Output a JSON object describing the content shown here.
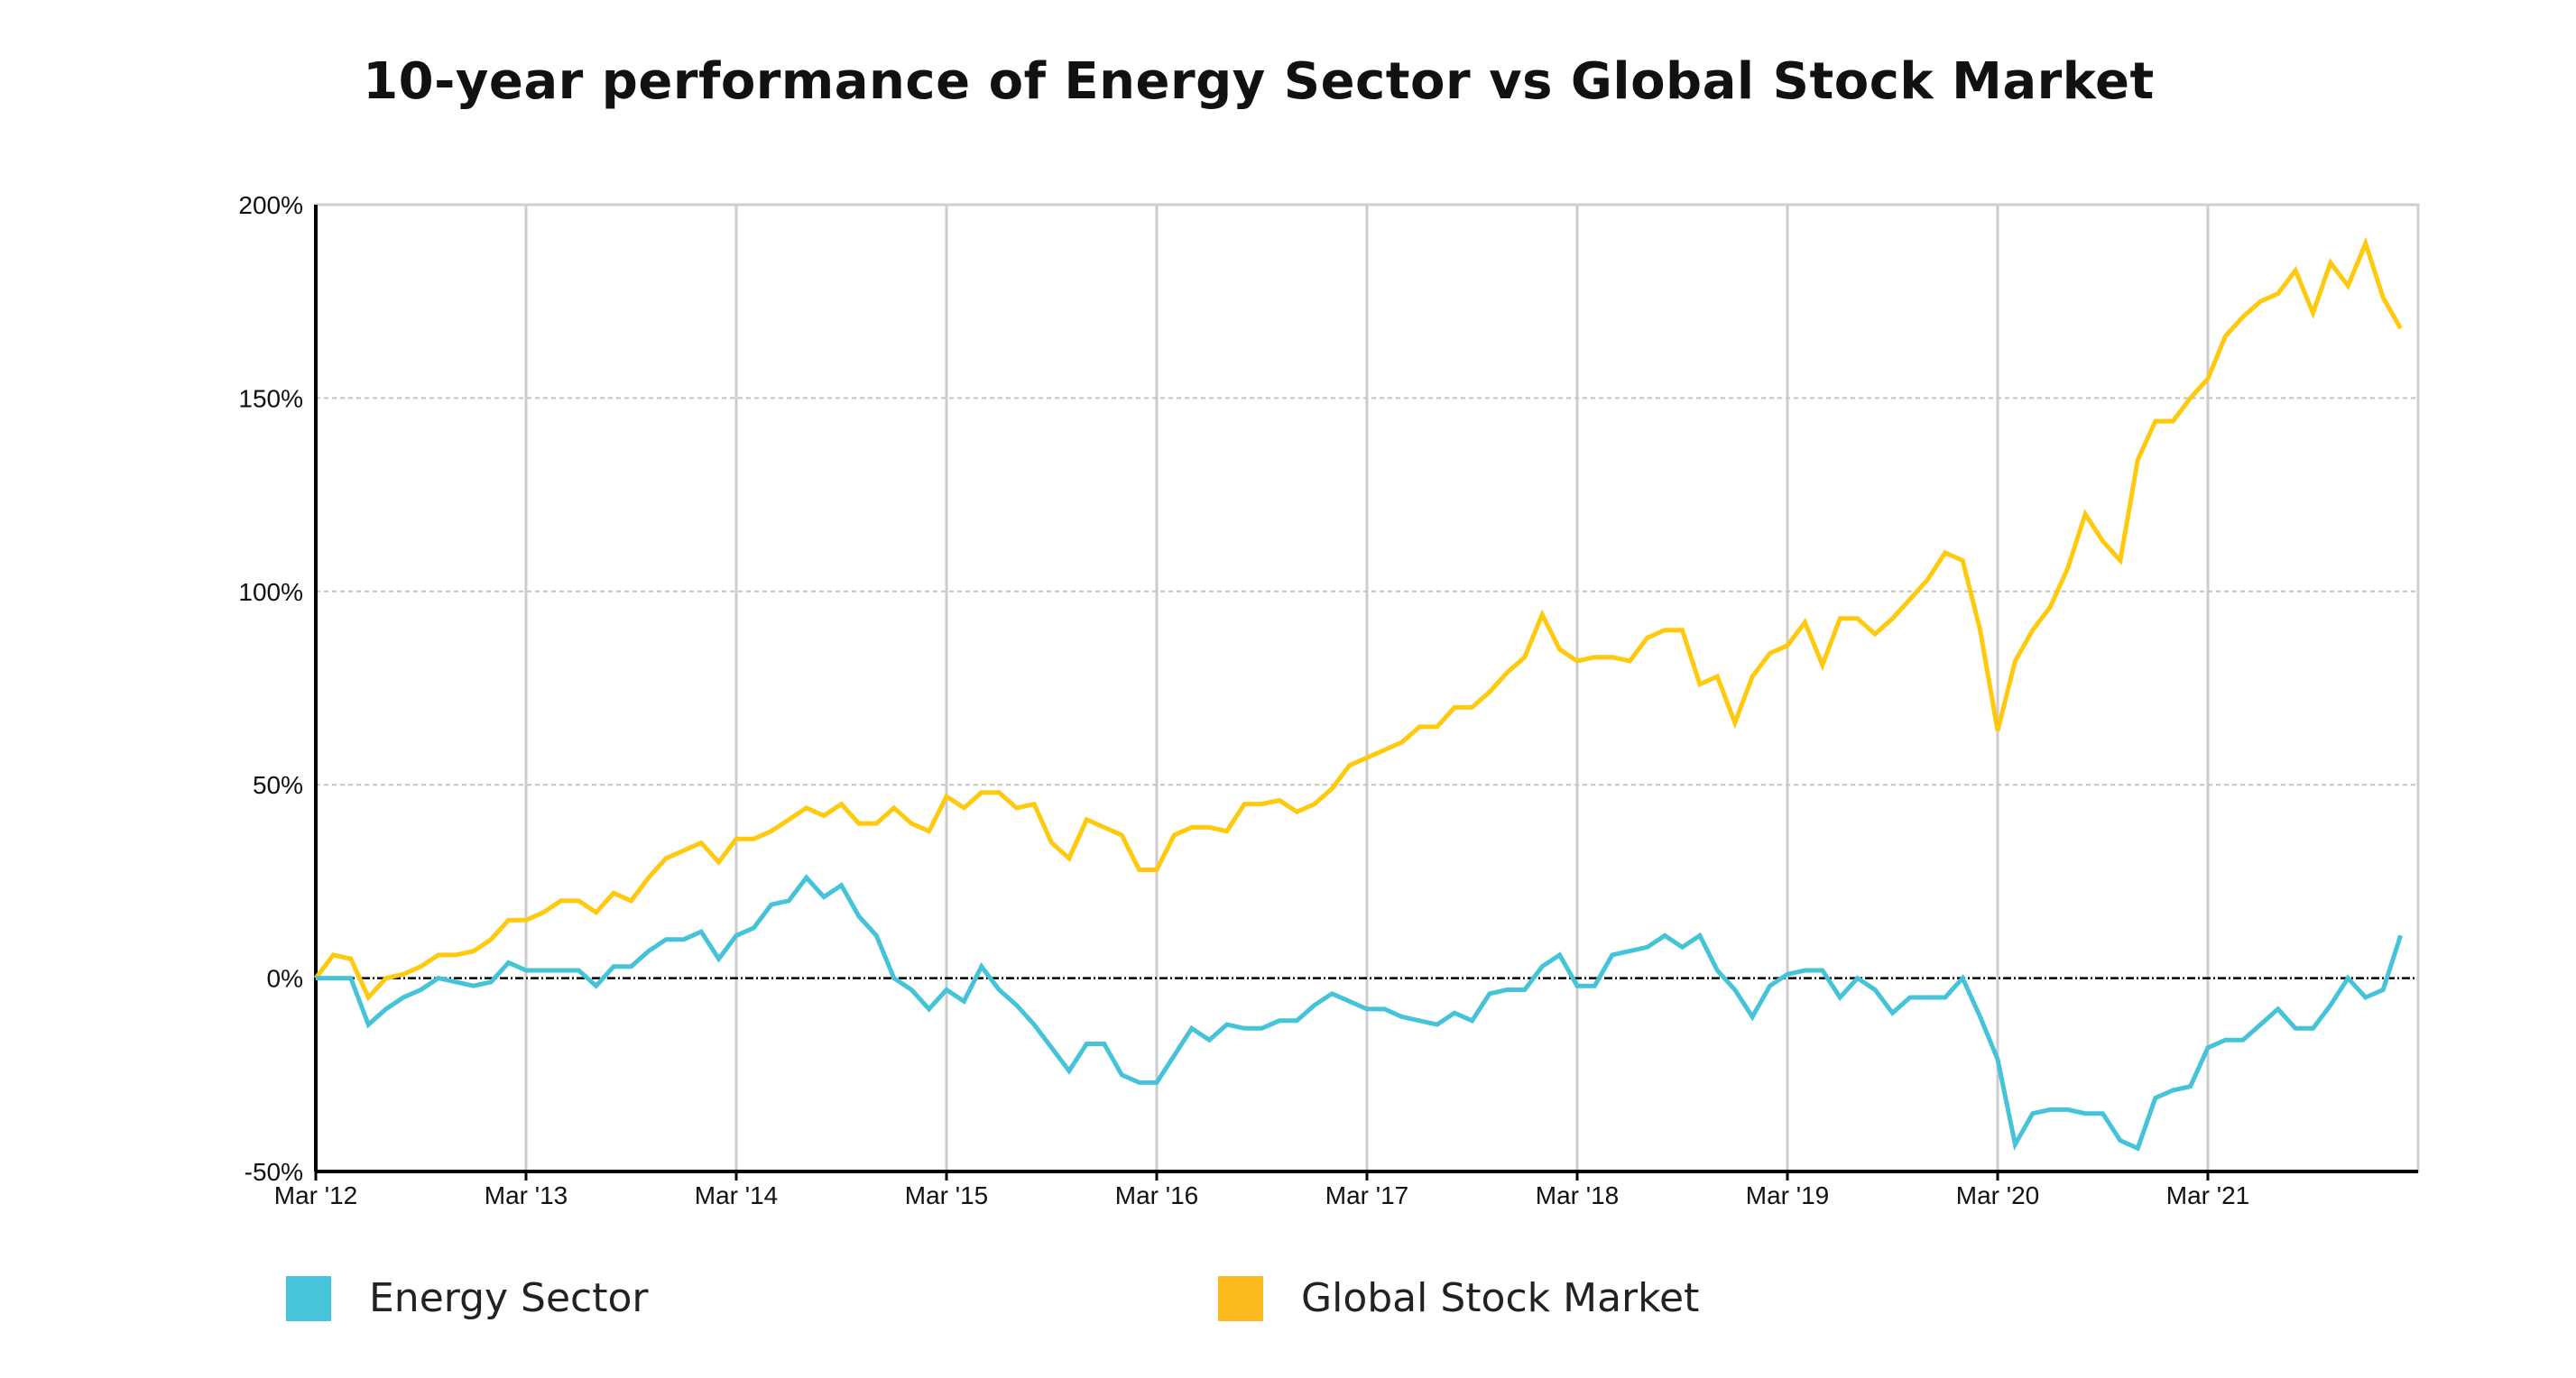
{
  "chart_data": {
    "type": "line",
    "title": "10-year performance of Energy Sector vs Global Stock Market",
    "xlabel": "",
    "ylabel": "",
    "ylim": [
      -50,
      200
    ],
    "yticks": [
      -50,
      0,
      50,
      100,
      150,
      200
    ],
    "ytick_labels": [
      "-50%",
      "0%",
      "50%",
      "100%",
      "150%",
      "200%"
    ],
    "xlim": [
      "2012-03",
      "2022-03"
    ],
    "xticks": [
      "2012-03",
      "2013-03",
      "2014-03",
      "2015-03",
      "2016-03",
      "2017-03",
      "2018-03",
      "2019-03",
      "2020-03",
      "2021-03"
    ],
    "xtick_labels": [
      "Mar '12",
      "Mar '13",
      "Mar '14",
      "Mar '15",
      "Mar '16",
      "Mar '17",
      "Mar '18",
      "Mar '19",
      "Mar '20",
      "Mar '21"
    ],
    "grid": {
      "vertical": true,
      "horizontal": true
    },
    "legend_position": "bottom",
    "x": [
      "2012-03",
      "2012-04",
      "2012-05",
      "2012-06",
      "2012-07",
      "2012-08",
      "2012-09",
      "2012-10",
      "2012-11",
      "2012-12",
      "2013-01",
      "2013-02",
      "2013-03",
      "2013-04",
      "2013-05",
      "2013-06",
      "2013-07",
      "2013-08",
      "2013-09",
      "2013-10",
      "2013-11",
      "2013-12",
      "2014-01",
      "2014-02",
      "2014-03",
      "2014-04",
      "2014-05",
      "2014-06",
      "2014-07",
      "2014-08",
      "2014-09",
      "2014-10",
      "2014-11",
      "2014-12",
      "2015-01",
      "2015-02",
      "2015-03",
      "2015-04",
      "2015-05",
      "2015-06",
      "2015-07",
      "2015-08",
      "2015-09",
      "2015-10",
      "2015-11",
      "2015-12",
      "2016-01",
      "2016-02",
      "2016-03",
      "2016-04",
      "2016-05",
      "2016-06",
      "2016-07",
      "2016-08",
      "2016-09",
      "2016-10",
      "2016-11",
      "2016-12",
      "2017-01",
      "2017-02",
      "2017-03",
      "2017-04",
      "2017-05",
      "2017-06",
      "2017-07",
      "2017-08",
      "2017-09",
      "2017-10",
      "2017-11",
      "2017-12",
      "2018-01",
      "2018-02",
      "2018-03",
      "2018-04",
      "2018-05",
      "2018-06",
      "2018-07",
      "2018-08",
      "2018-09",
      "2018-10",
      "2018-11",
      "2018-12",
      "2019-01",
      "2019-02",
      "2019-03",
      "2019-04",
      "2019-05",
      "2019-06",
      "2019-07",
      "2019-08",
      "2019-09",
      "2019-10",
      "2019-11",
      "2019-12",
      "2020-01",
      "2020-02",
      "2020-03",
      "2020-04",
      "2020-05",
      "2020-06",
      "2020-07",
      "2020-08",
      "2020-09",
      "2020-10",
      "2020-11",
      "2020-12",
      "2021-01",
      "2021-02",
      "2021-03",
      "2021-04",
      "2021-05",
      "2021-06",
      "2021-07",
      "2021-08",
      "2021-09",
      "2021-10",
      "2021-11",
      "2021-12",
      "2022-01",
      "2022-02"
    ],
    "series": [
      {
        "name": "Energy Sector",
        "color": "#45C3D8",
        "values": [
          0,
          0,
          0,
          -12,
          -8,
          -5,
          -3,
          0,
          -1,
          -2,
          -1,
          4,
          2,
          2,
          2,
          2,
          -2,
          3,
          3,
          7,
          10,
          10,
          12,
          5,
          11,
          13,
          19,
          20,
          26,
          21,
          24,
          16,
          11,
          0,
          -3,
          -8,
          -3,
          -6,
          3,
          -3,
          -7,
          -12,
          -18,
          -24,
          -17,
          -17,
          -25,
          -27,
          -27,
          -20,
          -13,
          -16,
          -12,
          -13,
          -13,
          -11,
          -11,
          -7,
          -4,
          -6,
          -8,
          -8,
          -10,
          -11,
          -12,
          -9,
          -11,
          -4,
          -3,
          -3,
          3,
          6,
          -2,
          -2,
          6,
          7,
          8,
          11,
          8,
          11,
          2,
          -3,
          -10,
          -2,
          1,
          2,
          2,
          -5,
          0,
          -3,
          -9,
          -5,
          -5,
          -5,
          0,
          -10,
          -21,
          -43,
          -35,
          -34,
          -34,
          -35,
          -35,
          -42,
          -44,
          -31,
          -29,
          -28,
          -18,
          -16,
          -16,
          -12,
          -8,
          -13,
          -13,
          -7,
          0,
          -5,
          -3,
          11
        ]
      },
      {
        "name": "Global Stock Market",
        "color": "#FFC90E",
        "values": [
          0,
          6,
          5,
          -5,
          0,
          1,
          3,
          6,
          6,
          7,
          10,
          15,
          15,
          17,
          20,
          20,
          17,
          22,
          20,
          26,
          31,
          33,
          35,
          30,
          36,
          36,
          38,
          41,
          44,
          42,
          45,
          40,
          40,
          44,
          40,
          38,
          47,
          44,
          48,
          48,
          44,
          45,
          35,
          31,
          41,
          39,
          37,
          28,
          28,
          37,
          39,
          39,
          38,
          45,
          45,
          46,
          43,
          45,
          49,
          55,
          57,
          59,
          61,
          65,
          65,
          70,
          70,
          74,
          79,
          83,
          94,
          85,
          82,
          83,
          83,
          82,
          88,
          90,
          90,
          76,
          78,
          66,
          78,
          84,
          86,
          92,
          81,
          93,
          93,
          89,
          93,
          98,
          103,
          110,
          108,
          90,
          64,
          82,
          90,
          96,
          106,
          120,
          113,
          108,
          134,
          144,
          144,
          150,
          155,
          166,
          171,
          175,
          177,
          183,
          172,
          185,
          179,
          190,
          176,
          168
        ]
      }
    ]
  },
  "legend": {
    "items": [
      {
        "label": "Energy Sector",
        "color": "#45C4DA"
      },
      {
        "label": "Global Stock Market",
        "color": "#FBB91D"
      }
    ]
  }
}
